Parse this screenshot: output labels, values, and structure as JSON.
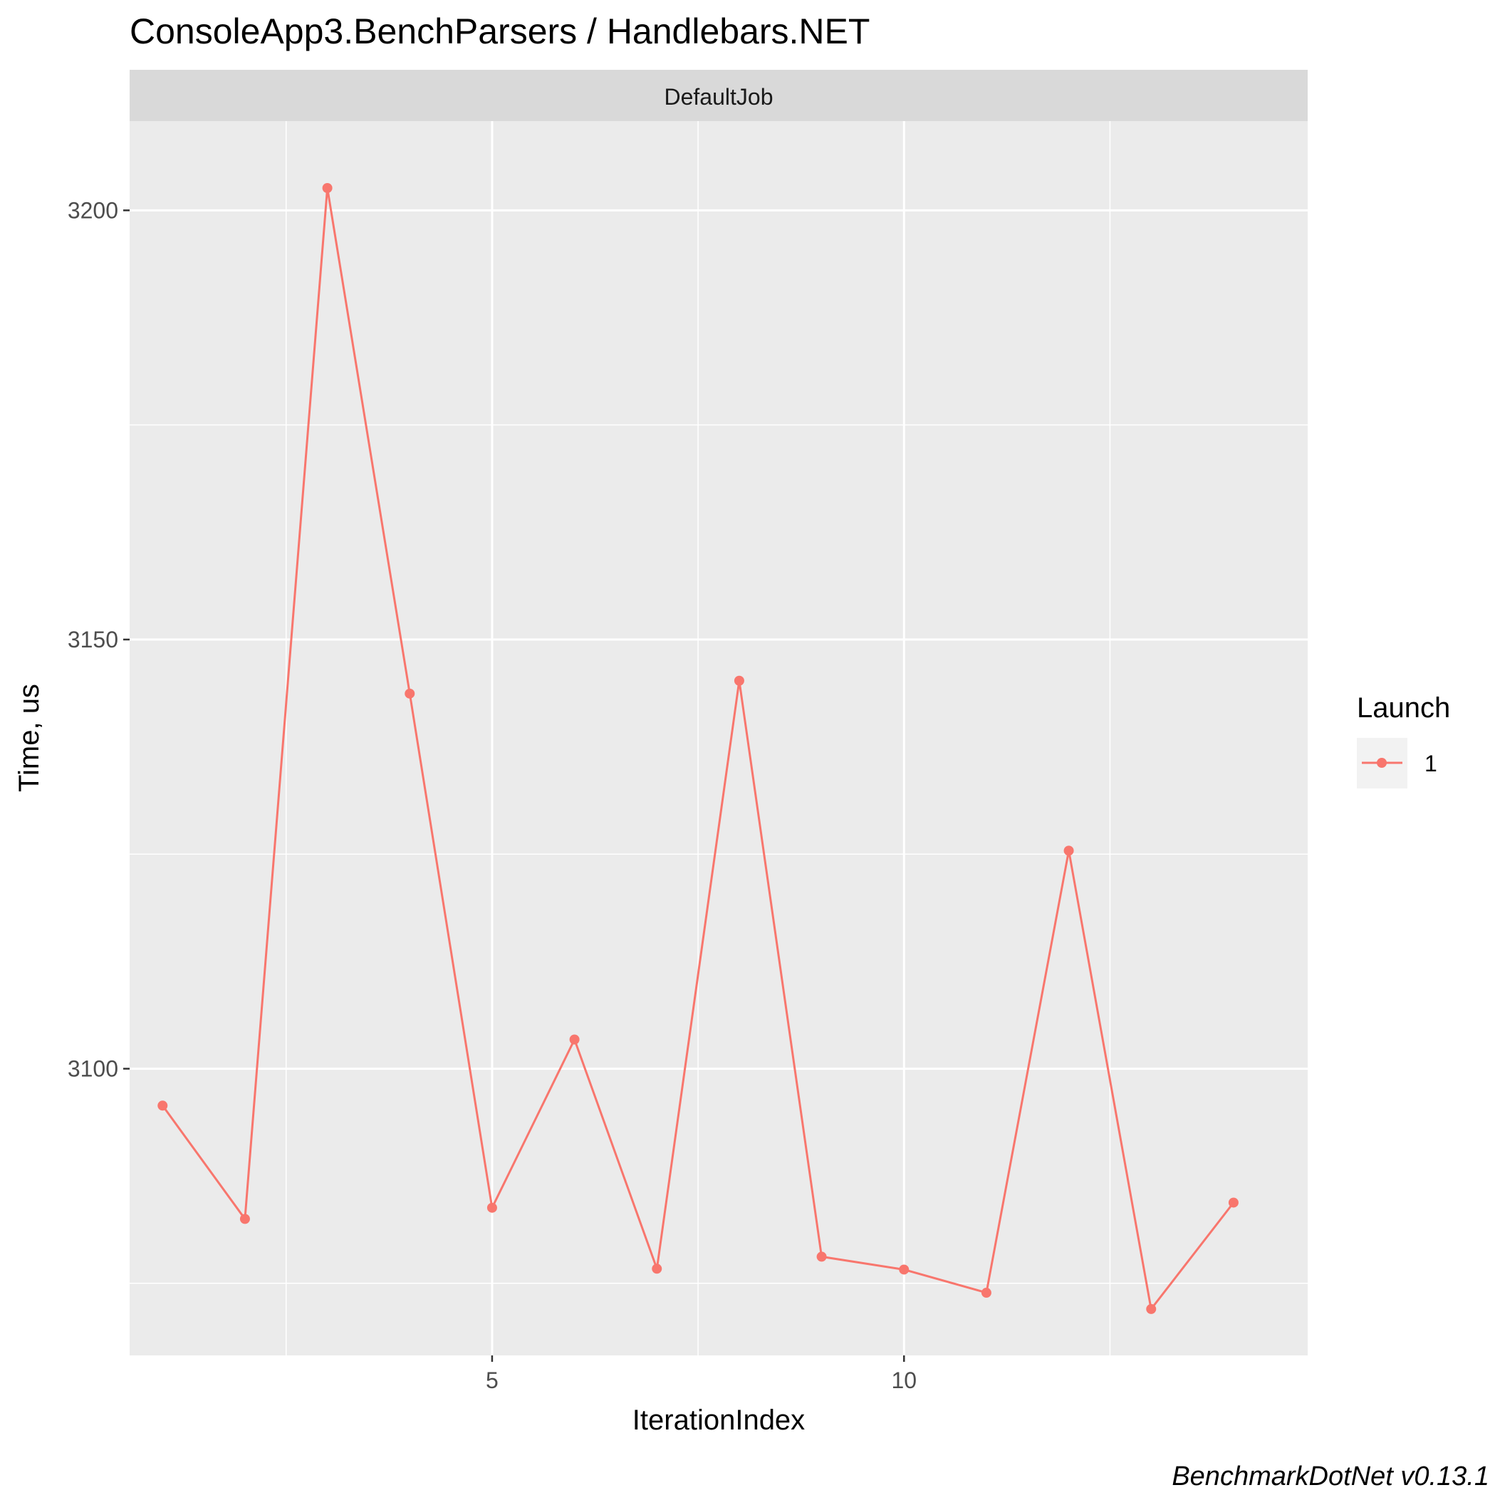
{
  "chart_data": {
    "type": "line",
    "title": "ConsoleApp3.BenchParsers / Handlebars.NET",
    "facet_label": "DefaultJob",
    "xlabel": "IterationIndex",
    "ylabel": "Time, us",
    "caption": "BenchmarkDotNet v0.13.1",
    "xlim": [
      0.6,
      14.9
    ],
    "ylim": [
      3066.6,
      3210.4
    ],
    "x_ticks": [
      5,
      10
    ],
    "x_tick_labels": [
      "5",
      "10"
    ],
    "x_minor": [
      2.5,
      7.5,
      12.5
    ],
    "y_ticks": [
      3100,
      3150,
      3200
    ],
    "y_tick_labels": [
      "3100",
      "3150",
      "3200"
    ],
    "y_minor": [
      3075,
      3125,
      3175
    ],
    "grid": true,
    "legend": {
      "title": "Launch",
      "position": "right",
      "entries": [
        "1"
      ]
    },
    "series": [
      {
        "name": "1",
        "color": "#F8766D",
        "x": [
          1,
          2,
          3,
          4,
          5,
          6,
          7,
          8,
          9,
          10,
          11,
          12,
          13,
          14
        ],
        "y": [
          3095.7,
          3082.5,
          3202.6,
          3143.7,
          3083.8,
          3103.4,
          3076.7,
          3145.2,
          3078.1,
          3076.6,
          3073.9,
          3125.4,
          3072.0,
          3084.4
        ]
      }
    ]
  }
}
